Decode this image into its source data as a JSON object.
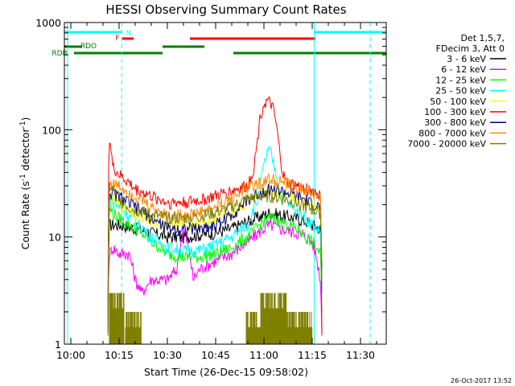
{
  "chart_data": {
    "type": "line",
    "title": "HESSI Observing Summary Count Rates",
    "xlabel": "Start Time (26-Dec-15 09:58:02)",
    "ylabel": "Count Rate (s",
    "ylabel_sup1": "-1",
    "ylabel_mid": " detector",
    "ylabel_sup2": "-1",
    "ylabel_end": ")",
    "y_scale": "log",
    "ylim": [
      1,
      1000
    ],
    "xlim": [
      -2,
      98
    ],
    "x_units": "minutes after 10:00",
    "grid": false,
    "legend_placement": "right",
    "x_ticks": [
      {
        "x": 0,
        "label": "10:00"
      },
      {
        "x": 15,
        "label": "10:15"
      },
      {
        "x": 30,
        "label": "10:30"
      },
      {
        "x": 45,
        "label": "10:45"
      },
      {
        "x": 60,
        "label": "11:00"
      },
      {
        "x": 75,
        "label": "11:15"
      },
      {
        "x": 90,
        "label": "11:30"
      }
    ],
    "y_ticks": [
      {
        "y": 1,
        "label": "1"
      },
      {
        "y": 10,
        "label": "10"
      },
      {
        "y": 100,
        "label": "100"
      },
      {
        "y": 1000,
        "label": "1000"
      }
    ],
    "legend_header": [
      "Det 1,5,7,",
      "FDecim 3, Att 0"
    ],
    "series": [
      {
        "name": "3 - 6 keV",
        "color": "#000000",
        "x": [
          11.5,
          12,
          15,
          20,
          25,
          30,
          35,
          40,
          45,
          50,
          55,
          60,
          62,
          65,
          70,
          73,
          75,
          77.5,
          78
        ],
        "y": [
          1.2,
          13,
          13,
          12,
          11,
          10,
          10,
          10.5,
          11,
          12,
          14,
          16,
          17,
          16,
          15,
          14,
          13,
          12,
          3
        ]
      },
      {
        "name": "6 - 12 keV",
        "color": "#ff00ff",
        "x": [
          11.5,
          12,
          13,
          15,
          18,
          20,
          22,
          25,
          30,
          33,
          35,
          38,
          40,
          45,
          50,
          55,
          60,
          62,
          65,
          70,
          73,
          75,
          77,
          77.5,
          78
        ],
        "y": [
          1.2,
          7,
          8,
          7,
          7,
          4,
          3,
          4,
          4,
          5,
          12,
          4,
          5,
          6,
          7,
          9,
          12,
          13,
          12,
          11,
          10,
          9,
          5,
          4,
          1.2
        ]
      },
      {
        "name": "12 - 25 keV",
        "color": "#00ff00",
        "x": [
          11.5,
          12,
          15,
          20,
          25,
          30,
          35,
          40,
          45,
          50,
          55,
          60,
          62,
          65,
          70,
          73,
          75,
          77.5,
          78
        ],
        "y": [
          1.2,
          18,
          15,
          12,
          9,
          7,
          6.5,
          6.5,
          7,
          8,
          10,
          14,
          15,
          14,
          12,
          10,
          9,
          7,
          2
        ]
      },
      {
        "name": "25 - 50 keV",
        "color": "#00ffff",
        "x": [
          11.5,
          12,
          15,
          20,
          25,
          30,
          35,
          40,
          45,
          50,
          55,
          58,
          60,
          61,
          62,
          63,
          65,
          68,
          70,
          73,
          75,
          77.5,
          78
        ],
        "y": [
          1.2,
          22,
          19,
          14,
          10,
          8,
          7.5,
          7.5,
          8.5,
          10,
          13,
          22,
          45,
          62,
          64,
          48,
          26,
          20,
          18,
          15,
          13,
          11,
          3
        ]
      },
      {
        "name": "50 - 100 keV",
        "color": "#ffff00",
        "x": [
          11.5,
          12,
          15,
          20,
          25,
          30,
          35,
          40,
          45,
          50,
          55,
          60,
          62,
          65,
          70,
          73,
          75,
          77.5,
          78
        ],
        "y": [
          1.2,
          24,
          20,
          17,
          14,
          13,
          13,
          13,
          14.5,
          17,
          21,
          26,
          27,
          26,
          24,
          22,
          20,
          18,
          4
        ]
      },
      {
        "name": "100 - 300 keV",
        "color": "#ff0000",
        "x": [
          11.5,
          12,
          13,
          15,
          18,
          20,
          25,
          30,
          35,
          40,
          45,
          50,
          55,
          57,
          58,
          59,
          60,
          61,
          62,
          63,
          64,
          65,
          66,
          67,
          70,
          73,
          75,
          77,
          77.5,
          78
        ],
        "y": [
          1.2,
          85,
          45,
          38,
          32,
          28,
          24,
          21,
          21,
          22,
          24,
          27,
          30,
          45,
          80,
          140,
          175,
          182,
          178,
          150,
          100,
          55,
          38,
          32,
          30,
          28,
          27,
          25,
          24,
          1.2
        ]
      },
      {
        "name": "300 - 800 keV",
        "color": "#00008b",
        "x": [
          11.5,
          12,
          15,
          20,
          25,
          30,
          35,
          40,
          45,
          50,
          55,
          60,
          62,
          65,
          70,
          73,
          75,
          77.5,
          78
        ],
        "y": [
          1.2,
          26,
          24,
          19,
          15,
          12,
          12,
          12,
          13,
          16,
          22,
          27,
          28,
          27,
          24,
          22,
          20,
          19,
          5
        ]
      },
      {
        "name": "800 - 7000 keV",
        "color": "#ff8c00",
        "x": [
          11.5,
          12,
          15,
          20,
          25,
          30,
          35,
          40,
          45,
          50,
          55,
          60,
          62,
          65,
          70,
          73,
          75,
          77.5,
          78
        ],
        "y": [
          1.2,
          32,
          30,
          24,
          19,
          16,
          16,
          17,
          19,
          23,
          29,
          33,
          35,
          33,
          29,
          27,
          25,
          23,
          6
        ]
      },
      {
        "name": "7000 - 20000 keV",
        "color": "#808000",
        "x": [
          11.5,
          12,
          15,
          18,
          20,
          25,
          30,
          35,
          40,
          45,
          50,
          55,
          60,
          62,
          65,
          70,
          73,
          75,
          77.5,
          78
        ],
        "y": [
          1.2,
          30,
          23,
          19,
          18,
          16,
          15,
          15,
          15.5,
          17,
          19,
          23,
          24,
          24,
          23,
          21,
          19,
          18,
          17,
          4
        ]
      }
    ],
    "low_bursts": {
      "color": "#808000",
      "segments": [
        {
          "x": [
            12,
            16.5
          ],
          "ylo": 1.0,
          "yhi": 3.0
        },
        {
          "x": [
            17,
            22
          ],
          "ylo": 1.0,
          "yhi": 2.0
        },
        {
          "x": [
            54.5,
            59
          ],
          "ylo": 1.0,
          "yhi": 2.0
        },
        {
          "x": [
            59,
            67
          ],
          "ylo": 1.0,
          "yhi": 3.0
        },
        {
          "x": [
            67,
            75
          ],
          "ylo": 1.0,
          "yhi": 2.0
        }
      ]
    },
    "vertical_lines": [
      {
        "x": -1,
        "color": "#00ffff",
        "style": "solid"
      },
      {
        "x": 15.8,
        "color": "#00ffff",
        "style": "dashed"
      },
      {
        "x": 75.6,
        "color": "#00ffff",
        "style": "solid"
      },
      {
        "x": 93,
        "color": "#00ffff",
        "style": "dashed"
      }
    ],
    "flag_bars": [
      {
        "label": "N",
        "color": "#00ffff",
        "row": 1,
        "spans": [
          [
            -2,
            15.8
          ],
          [
            75.6,
            98
          ]
        ]
      },
      {
        "label": "F",
        "color": "#ff0000",
        "row": 2,
        "spans": [
          [
            16,
            19.5
          ],
          [
            37,
            76
          ]
        ]
      },
      {
        "label": "RDO",
        "color": "#008000",
        "row": 3,
        "spans": [
          [
            -2,
            3.5
          ],
          [
            28.5,
            41.5
          ]
        ]
      },
      {
        "label": "RDB",
        "color": "#008000",
        "row": 4,
        "spans": [
          [
            1,
            28.5
          ],
          [
            50.5,
            75.6
          ],
          [
            75.6,
            98
          ]
        ]
      }
    ]
  },
  "stamp": "26-Oct-2017 13:52"
}
